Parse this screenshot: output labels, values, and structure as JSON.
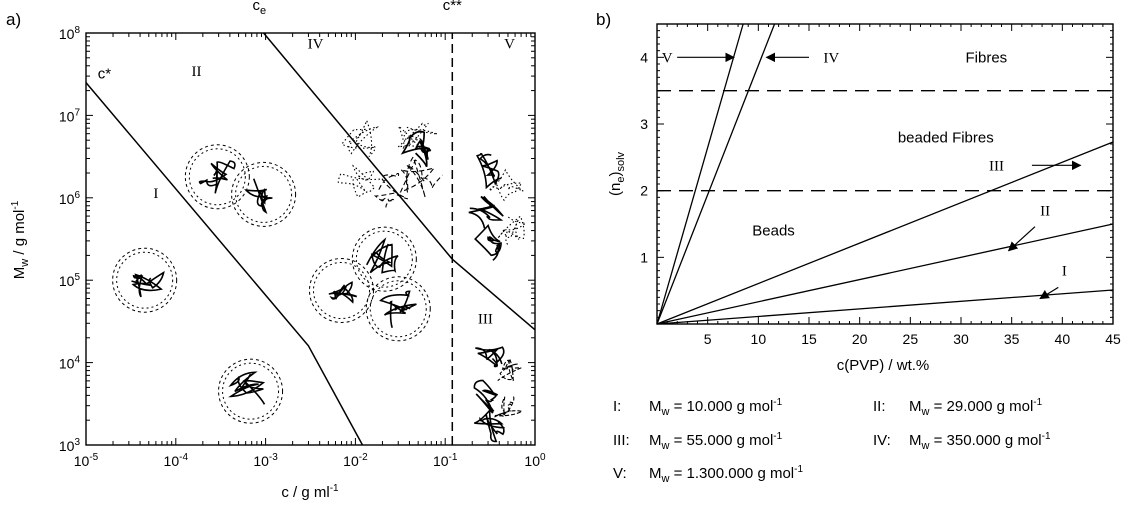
{
  "panels": {
    "a": {
      "tag": "a)"
    },
    "b": {
      "tag": "b)"
    }
  },
  "chart_data": [
    {
      "type": "line",
      "x_scale": "log",
      "y_scale": "log",
      "xlim": [
        1e-05,
        1
      ],
      "ylim": [
        1000,
        100000000
      ],
      "xlabel": "c / g ml",
      "xlabel_sup": "-1",
      "ylabel": "M",
      "ylabel_sub": "w",
      "ylabel_rest": " / g mol",
      "ylabel_sup": "-1",
      "x_ticks": [
        {
          "base": "10",
          "exp": "-5"
        },
        {
          "base": "10",
          "exp": "-4"
        },
        {
          "base": "10",
          "exp": "-3"
        },
        {
          "base": "10",
          "exp": "-2"
        },
        {
          "base": "10",
          "exp": "-1"
        },
        {
          "base": "10",
          "exp": "0"
        }
      ],
      "y_ticks": [
        {
          "base": "10",
          "exp": "3"
        },
        {
          "base": "10",
          "exp": "4"
        },
        {
          "base": "10",
          "exp": "5"
        },
        {
          "base": "10",
          "exp": "6"
        },
        {
          "base": "10",
          "exp": "7"
        },
        {
          "base": "10",
          "exp": "8"
        }
      ],
      "series": [
        {
          "x": [
            1e-05,
            0.003,
            0.012
          ],
          "y": [
            25000000,
            16000,
            1000
          ],
          "style": "solid"
        },
        {
          "x": [
            0.00095,
            0.12,
            1
          ],
          "y": [
            100000000,
            180000,
            25000
          ],
          "style": "solid"
        },
        {
          "x": [
            0.12,
            0.12
          ],
          "y": [
            1000,
            100000000
          ],
          "style": "dashed"
        }
      ],
      "boundary_labels": [
        {
          "text": "c*",
          "x": 1.35e-05,
          "y": 28000000
        },
        {
          "base": "c",
          "sub": "e",
          "x": 0.00085,
          "y": 190000000
        },
        {
          "text": "c**",
          "x": 0.12,
          "y": 190000000
        }
      ],
      "region_labels": [
        {
          "text": "I",
          "x": 6e-05,
          "y": 1000000
        },
        {
          "text": "II",
          "x": 0.00017,
          "y": 30000000
        },
        {
          "text": "III",
          "x": 0.28,
          "y": 30000
        },
        {
          "text": "IV",
          "x": 0.0036,
          "y": 65000000
        },
        {
          "text": "V",
          "x": 0.52,
          "y": 65000000
        }
      ],
      "illustrations": [
        {
          "kind": "coil",
          "x": 4.5e-05,
          "y": 100000
        },
        {
          "kind": "coil",
          "x": 0.00029,
          "y": 1800000
        },
        {
          "kind": "coil",
          "x": 0.00095,
          "y": 1100000
        },
        {
          "kind": "coil",
          "x": 0.00068,
          "y": 4500
        },
        {
          "kind": "coil",
          "x": 0.007,
          "y": 75000
        },
        {
          "kind": "coil",
          "x": 0.021,
          "y": 180000
        },
        {
          "kind": "coil",
          "x": 0.03,
          "y": 45000
        },
        {
          "kind": "entangled",
          "x": 0.03,
          "y": 3000000
        },
        {
          "kind": "dense",
          "x": 0.38,
          "y": 1000000
        },
        {
          "kind": "dense",
          "x": 0.38,
          "y": 5500
        }
      ]
    },
    {
      "type": "line",
      "xlim": [
        0,
        45
      ],
      "ylim": [
        0,
        4.5
      ],
      "xlabel": "c(PVP) / wt.%",
      "ylabel": "(n",
      "ylabel_sub": "e",
      "ylabel_rest": ")",
      "ylabel_sub2": "solv",
      "x_ticks": [
        "5",
        "10",
        "15",
        "20",
        "25",
        "30",
        "35",
        "40",
        "45"
      ],
      "x_tick_values": [
        5,
        10,
        15,
        20,
        25,
        30,
        35,
        40,
        45
      ],
      "y_ticks": [
        "1",
        "2",
        "3",
        "4"
      ],
      "y_tick_values": [
        1,
        2,
        3,
        4
      ],
      "series": [
        {
          "name": "I",
          "x": [
            0,
            45
          ],
          "y": [
            0,
            0.51
          ]
        },
        {
          "name": "II",
          "x": [
            0,
            45
          ],
          "y": [
            0,
            1.5
          ]
        },
        {
          "name": "III",
          "x": [
            0,
            45
          ],
          "y": [
            0,
            2.73
          ]
        },
        {
          "name": "IV",
          "x": [
            0,
            11.6
          ],
          "y": [
            0,
            4.5
          ]
        },
        {
          "name": "V",
          "x": [
            0,
            8.5
          ],
          "y": [
            0,
            4.5
          ]
        }
      ],
      "hlines": [
        {
          "y": 2,
          "style": "dashed"
        },
        {
          "y": 3.5,
          "style": "dashed"
        }
      ],
      "regions": [
        {
          "text": "Fibres",
          "x": 32.5,
          "y": 4.0
        },
        {
          "text": "beaded Fibres",
          "x": 28.5,
          "y": 2.8
        },
        {
          "text": "Beads",
          "x": 11.5,
          "y": 1.4
        }
      ],
      "series_labels": [
        {
          "text": "V",
          "x": 1.0,
          "y": 4.0,
          "arrow": "right",
          "arrow_to": [
            7.6,
            4.0
          ]
        },
        {
          "text": "IV",
          "x": 17.2,
          "y": 4.0,
          "arrow": "left",
          "arrow_from": [
            15.0,
            4.0
          ],
          "arrow_to": [
            10.8,
            4.0
          ]
        },
        {
          "text": "III",
          "x": 33.5,
          "y": 2.38,
          "arrow": "right",
          "arrow_from": [
            37.0,
            2.38
          ],
          "arrow_to": [
            41.8,
            2.38
          ]
        },
        {
          "text": "II",
          "x": 38.3,
          "y": 1.7,
          "arrow": "down-left",
          "arrow_from": [
            37.3,
            1.46
          ],
          "arrow_to": [
            34.7,
            1.1
          ]
        },
        {
          "text": "I",
          "x": 40.2,
          "y": 0.8,
          "arrow": "down-left",
          "arrow_from": [
            39.6,
            0.55
          ],
          "arrow_to": [
            37.8,
            0.38
          ]
        }
      ],
      "legend": [
        {
          "numeral": "I:",
          "prefix": "M",
          "sub": "w",
          "value": " = 10.000 g mol",
          "sup": "-1"
        },
        {
          "numeral": "II:",
          "prefix": "M",
          "sub": "w",
          "value": " = 29.000 g mol",
          "sup": "-1"
        },
        {
          "numeral": "III:",
          "prefix": "M",
          "sub": "w",
          "value": " = 55.000 g mol",
          "sup": "-1"
        },
        {
          "numeral": "IV:",
          "prefix": "M",
          "sub": "w",
          "value": " = 350.000 g mol",
          "sup": "-1"
        },
        {
          "numeral": "V:",
          "prefix": "M",
          "sub": "w",
          "value": " = 1.300.000 g mol",
          "sup": "-1"
        }
      ]
    }
  ]
}
